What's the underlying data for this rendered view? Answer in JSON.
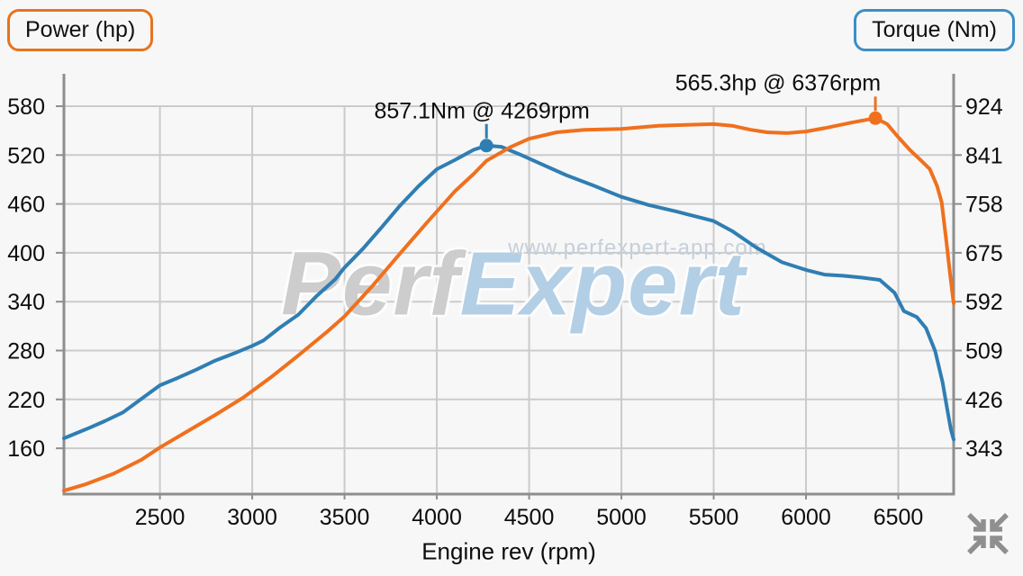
{
  "buttons": {
    "power": {
      "label": "Power (hp)",
      "border_color": "#e8731d"
    },
    "torque": {
      "label": "Torque (Nm)",
      "border_color": "#3d8ec6"
    }
  },
  "watermark": {
    "brand_gray": "Perf",
    "brand_blue": "Expert",
    "url": "www.perfexpert-app.com"
  },
  "x_axis_title": "Engine rev (rpm)",
  "collapse_icon_color": "#8f8f8f",
  "colors": {
    "background": "#f7f7f7",
    "grid": "#cbcbcb",
    "axis_border": "#8e8e8e",
    "power_curve": "#f0701d",
    "torque_curve": "#2f7eb3",
    "text": "#0d0d0d"
  },
  "chart_data": {
    "type": "line",
    "title": "",
    "xlabel": "Engine rev (rpm)",
    "x_range": [
      1980,
      6800
    ],
    "x_ticks": [
      2500,
      3000,
      3500,
      4000,
      4500,
      5000,
      5500,
      6000,
      6500
    ],
    "left_axis": {
      "label": "Power (hp)",
      "ticks": [
        580,
        520,
        460,
        400,
        340,
        280,
        220,
        160
      ],
      "range": [
        104,
        620
      ]
    },
    "right_axis": {
      "label": "Torque (Nm)",
      "ticks": [
        924,
        841,
        758,
        675,
        592,
        509,
        426,
        343
      ],
      "range": [
        265,
        979
      ]
    },
    "grid": true,
    "legend_position": "top-corners",
    "series": [
      {
        "name": "Torque (Nm)",
        "axis": "right",
        "color": "#2f7eb3",
        "peak": {
          "rpm": 4269,
          "value": 857.1,
          "label": "857.1Nm @ 4269rpm"
        },
        "points": [
          [
            1980,
            360
          ],
          [
            2050,
            369
          ],
          [
            2120,
            378
          ],
          [
            2200,
            389
          ],
          [
            2300,
            404
          ],
          [
            2400,
            427
          ],
          [
            2500,
            450
          ],
          [
            2600,
            463
          ],
          [
            2700,
            477
          ],
          [
            2800,
            492
          ],
          [
            2900,
            504
          ],
          [
            3000,
            517
          ],
          [
            3060,
            526
          ],
          [
            3150,
            548
          ],
          [
            3250,
            570
          ],
          [
            3350,
            602
          ],
          [
            3450,
            630
          ],
          [
            3500,
            650
          ],
          [
            3600,
            682
          ],
          [
            3700,
            718
          ],
          [
            3800,
            755
          ],
          [
            3900,
            788
          ],
          [
            4000,
            817
          ],
          [
            4100,
            833
          ],
          [
            4200,
            850
          ],
          [
            4269,
            857.1
          ],
          [
            4350,
            855
          ],
          [
            4450,
            842
          ],
          [
            4550,
            828
          ],
          [
            4700,
            807
          ],
          [
            4850,
            789
          ],
          [
            5000,
            770
          ],
          [
            5150,
            756
          ],
          [
            5300,
            745
          ],
          [
            5400,
            737
          ],
          [
            5500,
            729
          ],
          [
            5600,
            712
          ],
          [
            5730,
            684
          ],
          [
            5870,
            659
          ],
          [
            6000,
            646
          ],
          [
            6100,
            638
          ],
          [
            6200,
            636
          ],
          [
            6300,
            633
          ],
          [
            6400,
            629
          ],
          [
            6480,
            607
          ],
          [
            6530,
            576
          ],
          [
            6600,
            566
          ],
          [
            6650,
            547
          ],
          [
            6700,
            508
          ],
          [
            6740,
            455
          ],
          [
            6765,
            410
          ],
          [
            6785,
            375
          ],
          [
            6800,
            358
          ]
        ]
      },
      {
        "name": "Power (hp)",
        "axis": "left",
        "color": "#f0701d",
        "peak": {
          "rpm": 6376,
          "value": 565.3,
          "label": "565.3hp @ 6376rpm"
        },
        "points": [
          [
            1980,
            108
          ],
          [
            2100,
            116
          ],
          [
            2250,
            129
          ],
          [
            2400,
            146
          ],
          [
            2500,
            161
          ],
          [
            2650,
            181
          ],
          [
            2800,
            201
          ],
          [
            2950,
            222
          ],
          [
            3100,
            247
          ],
          [
            3250,
            274
          ],
          [
            3400,
            302
          ],
          [
            3500,
            322
          ],
          [
            3650,
            359
          ],
          [
            3800,
            399
          ],
          [
            3950,
            438
          ],
          [
            4100,
            476
          ],
          [
            4200,
            497
          ],
          [
            4269,
            513
          ],
          [
            4400,
            530
          ],
          [
            4500,
            540
          ],
          [
            4650,
            548
          ],
          [
            4800,
            551
          ],
          [
            5000,
            552
          ],
          [
            5200,
            556
          ],
          [
            5350,
            557
          ],
          [
            5500,
            558
          ],
          [
            5600,
            556
          ],
          [
            5700,
            551
          ],
          [
            5790,
            548
          ],
          [
            5900,
            547
          ],
          [
            6000,
            549
          ],
          [
            6100,
            553
          ],
          [
            6250,
            560
          ],
          [
            6376,
            565.3
          ],
          [
            6440,
            558
          ],
          [
            6500,
            542
          ],
          [
            6560,
            527
          ],
          [
            6620,
            514
          ],
          [
            6670,
            503
          ],
          [
            6710,
            482
          ],
          [
            6735,
            462
          ],
          [
            6760,
            415
          ],
          [
            6780,
            375
          ],
          [
            6800,
            338
          ]
        ]
      }
    ]
  }
}
